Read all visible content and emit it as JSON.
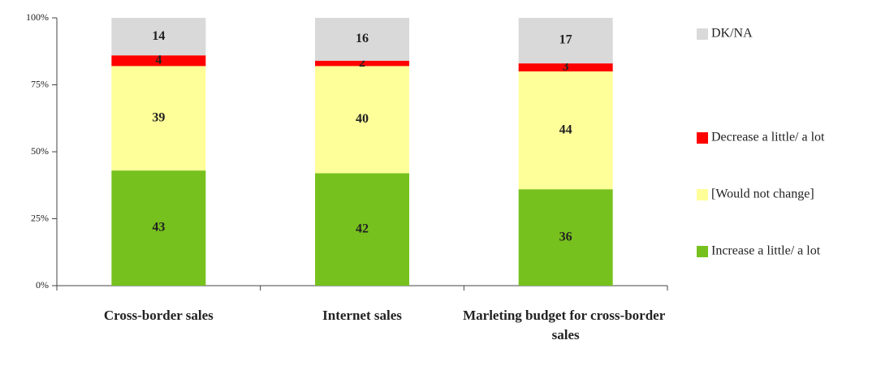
{
  "chart_data": {
    "type": "stacked_bar",
    "categories": [
      "Cross-border sales",
      "Internet sales",
      "Marleting budget for cross-border sales"
    ],
    "series": [
      {
        "name": "Increase a little/ a lot",
        "color": "#77c11e",
        "values": [
          43,
          42,
          36
        ]
      },
      {
        "name": "[Would not change]",
        "color": "#ffff99",
        "values": [
          39,
          40,
          44
        ]
      },
      {
        "name": "Decrease a little/ a lot",
        "color": "#ff0000",
        "values": [
          4,
          2,
          3
        ]
      },
      {
        "name": "DK/NA",
        "color": "#d9d9d9",
        "values": [
          14,
          16,
          17
        ]
      }
    ],
    "ylim": [
      0,
      100
    ],
    "yticks": [
      {
        "value": 0,
        "label": "0%"
      },
      {
        "value": 25,
        "label": "25%"
      },
      {
        "value": 50,
        "label": "50%"
      },
      {
        "value": 75,
        "label": "75%"
      },
      {
        "value": 100,
        "label": "100%"
      }
    ]
  }
}
